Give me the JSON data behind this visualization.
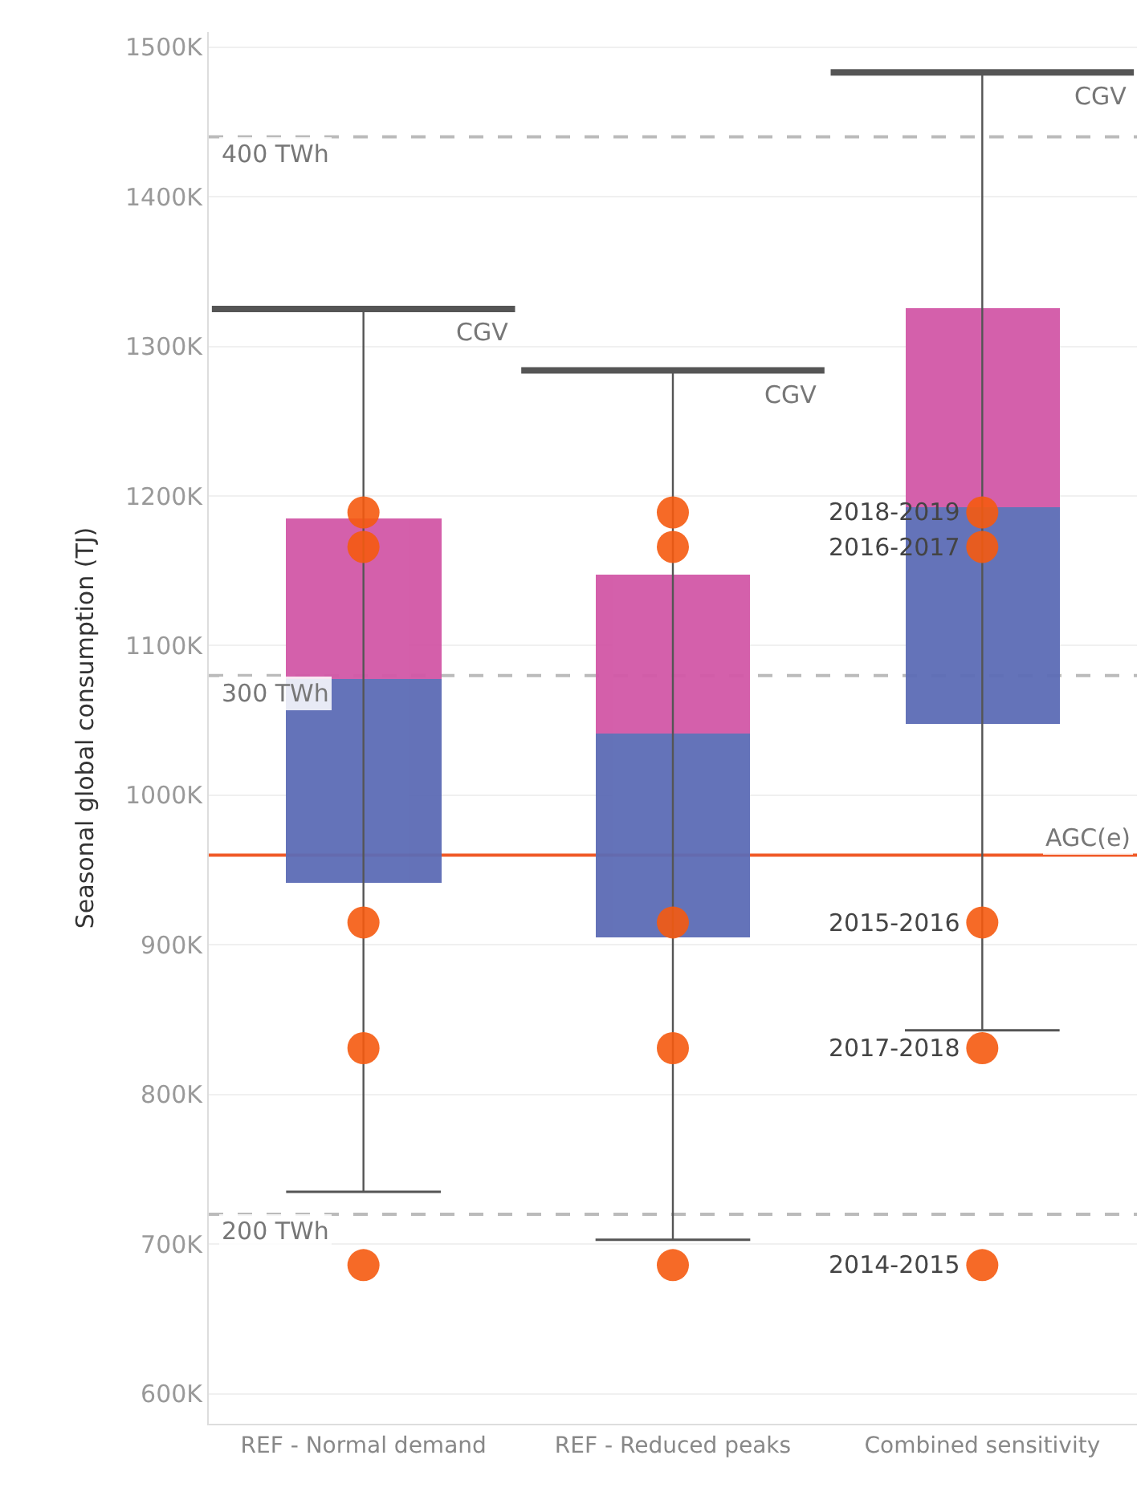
{
  "chart_data": {
    "type": "box",
    "ylabel": "Seasonal global consumption (TJ)",
    "categories": [
      "REF - Normal demand",
      "REF - Reduced peaks",
      "Combined sensitivity"
    ],
    "boxes": [
      {
        "low": 735000,
        "q1": 941000,
        "median": 1078000,
        "q3": 1185000,
        "high": 1325000
      },
      {
        "low": 703000,
        "q1": 905000,
        "median": 1041000,
        "q3": 1147000,
        "high": 1284000
      },
      {
        "low": 843000,
        "q1": 1048000,
        "median": 1193000,
        "q3": 1326000,
        "high": 1483000
      }
    ],
    "series": [
      {
        "type": "scatter",
        "color": "#f55a0f",
        "x": [
          "REF - Normal demand",
          "REF - Normal demand",
          "REF - Normal demand",
          "REF - Normal demand",
          "REF - Normal demand",
          "REF - Reduced peaks",
          "REF - Reduced peaks",
          "REF - Reduced peaks",
          "REF - Reduced peaks",
          "REF - Reduced peaks",
          "Combined sensitivity",
          "Combined sensitivity",
          "Combined sensitivity",
          "Combined sensitivity",
          "Combined sensitivity"
        ],
        "values": [
          1189000,
          1166000,
          915000,
          831000,
          686000,
          1189000,
          1166000,
          915000,
          831000,
          686000,
          1189000,
          1166000,
          915000,
          831000,
          686000
        ]
      }
    ],
    "marker": "circle",
    "annotations": [
      "CGV",
      "CGV",
      "CGV",
      {
        "text": "2018-2019",
        "x": "Combined sensitivity",
        "y": 1189000
      },
      {
        "text": "2016-2017",
        "x": "Combined sensitivity",
        "y": 1166000
      },
      {
        "text": "2015-2016",
        "x": "Combined sensitivity",
        "y": 915000
      },
      {
        "text": "2017-2018",
        "x": "Combined sensitivity",
        "y": 831000
      },
      {
        "text": "2014-2015",
        "x": "Combined sensitivity",
        "y": 686000
      }
    ],
    "ref_lines": [
      {
        "axis": "y",
        "value": 1440000,
        "label": "400 TWh",
        "color": "#bbbbbb",
        "line_style": "dashed"
      },
      {
        "axis": "y",
        "value": 1080000,
        "label": "300 TWh",
        "color": "#bbbbbb",
        "line_style": "dashed"
      },
      {
        "axis": "y",
        "value": 720000,
        "label": "200 TWh",
        "color": "#bbbbbb",
        "line_style": "dashed"
      },
      {
        "axis": "y",
        "value": 960000,
        "label": "AGC(e)",
        "color": "#f05a28",
        "line_style": "solid"
      }
    ],
    "ylim": [
      580000,
      1510000
    ],
    "yticks": [
      {
        "value": 600000,
        "label": "600K"
      },
      {
        "value": 700000,
        "label": "700K"
      },
      {
        "value": 800000,
        "label": "800K"
      },
      {
        "value": 900000,
        "label": "900K"
      },
      {
        "value": 1000000,
        "label": "1000K"
      },
      {
        "value": 1100000,
        "label": "1100K"
      },
      {
        "value": 1200000,
        "label": "1200K"
      },
      {
        "value": 1300000,
        "label": "1300K"
      },
      {
        "value": 1400000,
        "label": "1400K"
      },
      {
        "value": 1500000,
        "label": "1500K"
      }
    ],
    "grid": "y"
  }
}
